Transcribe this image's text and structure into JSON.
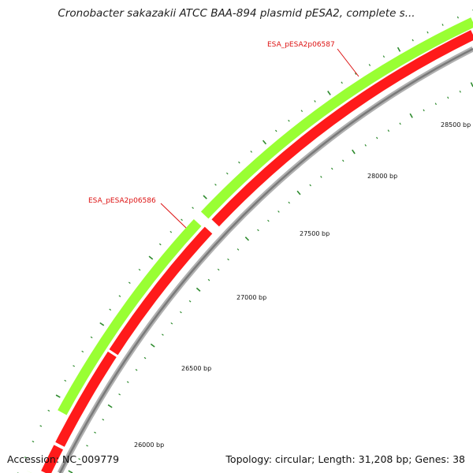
{
  "title": "Cronobacter sakazakii ATCC BAA-894 plasmid pESA2, complete s...",
  "footer": {
    "accession": "Accession: NC_009779",
    "summary": "Topology: circular; Length: 31,208 bp; Genes: 38"
  },
  "gene_labels": [
    {
      "text": "ESA_pESA2p06587"
    },
    {
      "text": "ESA_pESA2p06586"
    }
  ],
  "tick_labels": [
    {
      "text": "28500 bp"
    },
    {
      "text": "28000 bp"
    },
    {
      "text": "27500 bp"
    },
    {
      "text": "27000 bp"
    },
    {
      "text": "26500 bp"
    },
    {
      "text": "26000 bp"
    }
  ],
  "colors": {
    "forward_gene": "#99ff33",
    "reverse_gene": "#ff1a1a",
    "backbone": "#8c8c8c",
    "tick": "#2e8b2e",
    "label": "#dd1111"
  }
}
